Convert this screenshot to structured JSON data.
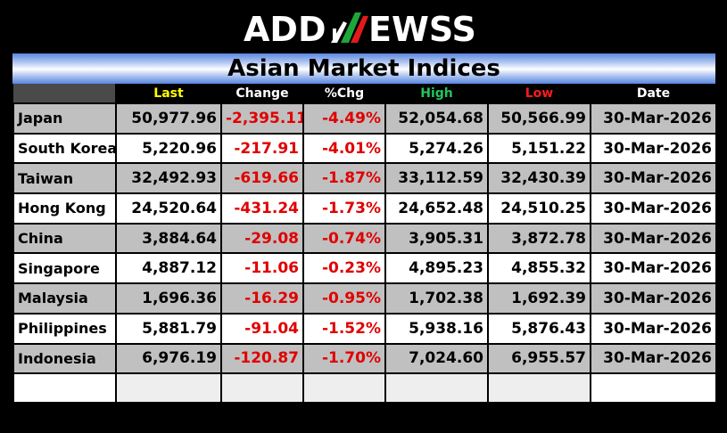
{
  "brand": {
    "logo_text": "ADDNEWSS",
    "logo_parts": [
      "ADD",
      "N",
      "EWSS"
    ]
  },
  "title": "Asian Market Indices",
  "headers": [
    {
      "label": "",
      "color": "#ffffff"
    },
    {
      "label": "Last",
      "color": "#ffff00"
    },
    {
      "label": "Change",
      "color": "#ffffff"
    },
    {
      "label": "%Chg",
      "color": "#ffffff"
    },
    {
      "label": "High",
      "color": "#22c55e"
    },
    {
      "label": "Low",
      "color": "#ff1a1a"
    },
    {
      "label": "Date",
      "color": "#ffffff"
    }
  ],
  "rows": [
    {
      "name": "Japan",
      "last": "50,977.96",
      "change": "-2,395.11",
      "pct": "-4.49%",
      "high": "52,054.68",
      "low": "50,566.99",
      "date": "30-Mar-2026"
    },
    {
      "name": "South Korea",
      "last": "5,220.96",
      "change": "-217.91",
      "pct": "-4.01%",
      "high": "5,274.26",
      "low": "5,151.22",
      "date": "30-Mar-2026"
    },
    {
      "name": "Taiwan",
      "last": "32,492.93",
      "change": "-619.66",
      "pct": "-1.87%",
      "high": "33,112.59",
      "low": "32,430.39",
      "date": "30-Mar-2026"
    },
    {
      "name": "Hong Kong",
      "last": "24,520.64",
      "change": "-431.24",
      "pct": "-1.73%",
      "high": "24,652.48",
      "low": "24,510.25",
      "date": "30-Mar-2026"
    },
    {
      "name": "China",
      "last": "3,884.64",
      "change": "-29.08",
      "pct": "-0.74%",
      "high": "3,905.31",
      "low": "3,872.78",
      "date": "30-Mar-2026"
    },
    {
      "name": "Singapore",
      "last": "4,887.12",
      "change": "-11.06",
      "pct": "-0.23%",
      "high": "4,895.23",
      "low": "4,855.32",
      "date": "30-Mar-2026"
    },
    {
      "name": "Malaysia",
      "last": "1,696.36",
      "change": "-16.29",
      "pct": "-0.95%",
      "high": "1,702.38",
      "low": "1,692.39",
      "date": "30-Mar-2026"
    },
    {
      "name": "Philippines",
      "last": "5,881.79",
      "change": "-91.04",
      "pct": "-1.52%",
      "high": "5,938.16",
      "low": "5,876.43",
      "date": "30-Mar-2026"
    },
    {
      "name": "Indonesia",
      "last": "6,976.19",
      "change": "-120.87",
      "pct": "-1.70%",
      "high": "7,024.60",
      "low": "6,955.57",
      "date": "30-Mar-2026"
    }
  ],
  "colors": {
    "negative": "#e00000",
    "row_alt": "#c0c0c0",
    "title_blue": "#5a87e0",
    "logo_green": "#1fa63a",
    "logo_red": "#e01b1b"
  }
}
